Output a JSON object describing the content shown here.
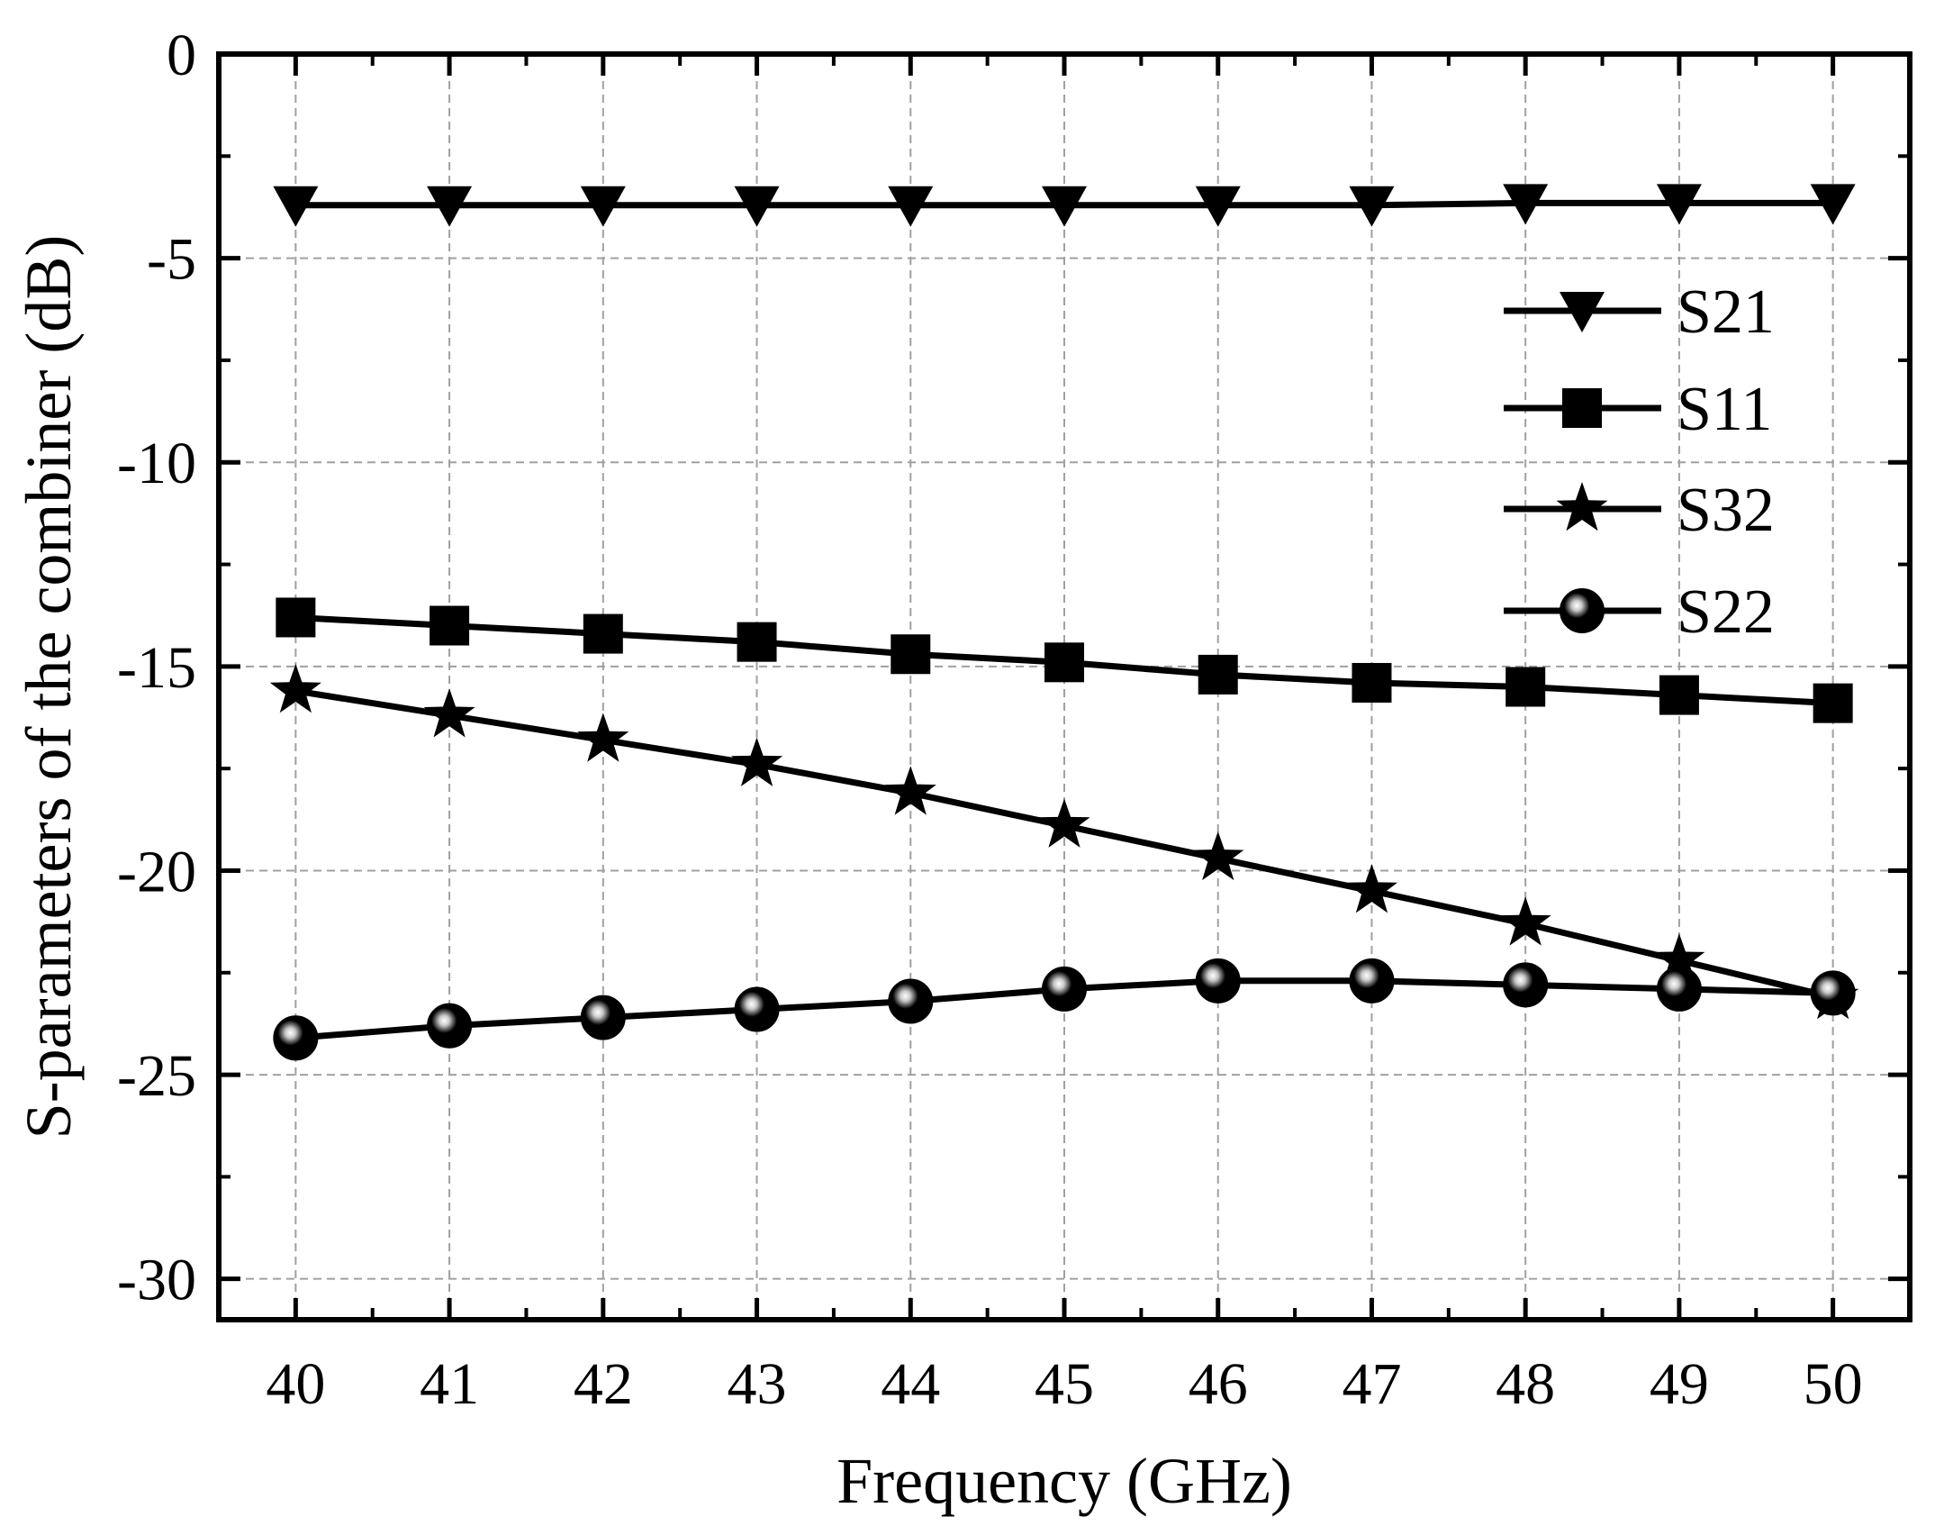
{
  "chart_data": {
    "type": "line",
    "title": "",
    "xlabel": "Frequency (GHz)",
    "ylabel": "S-parameters of the combiner (dB)",
    "xlim": [
      39.5,
      50.5
    ],
    "ylim": [
      -31,
      0
    ],
    "x_ticks": [
      40,
      41,
      42,
      43,
      44,
      45,
      46,
      47,
      48,
      49,
      50
    ],
    "y_ticks": [
      0,
      -5,
      -10,
      -15,
      -20,
      -25,
      -30
    ],
    "grid": true,
    "legend_position": "top-right",
    "x": [
      40,
      41,
      42,
      43,
      44,
      45,
      46,
      47,
      48,
      49,
      50
    ],
    "series": [
      {
        "name": "S21",
        "marker": "triangle-down",
        "values": [
          -3.7,
          -3.7,
          -3.7,
          -3.7,
          -3.7,
          -3.7,
          -3.7,
          -3.7,
          -3.65,
          -3.65,
          -3.65
        ]
      },
      {
        "name": "S11",
        "marker": "square",
        "values": [
          -13.8,
          -14.0,
          -14.2,
          -14.4,
          -14.7,
          -14.9,
          -15.2,
          -15.4,
          -15.5,
          -15.7,
          -15.9
        ]
      },
      {
        "name": "S32",
        "marker": "star",
        "values": [
          -15.6,
          -16.2,
          -16.8,
          -17.4,
          -18.1,
          -18.9,
          -19.7,
          -20.5,
          -21.3,
          -22.2,
          -23.1
        ]
      },
      {
        "name": "S22",
        "marker": "sphere",
        "values": [
          -24.1,
          -23.8,
          -23.6,
          -23.4,
          -23.2,
          -22.9,
          -22.7,
          -22.7,
          -22.8,
          -22.9,
          -23.0
        ]
      }
    ],
    "colors": {
      "line": "#000000",
      "grid": "#a0a0a0",
      "sphere_highlight": "#e8e8e8"
    }
  }
}
